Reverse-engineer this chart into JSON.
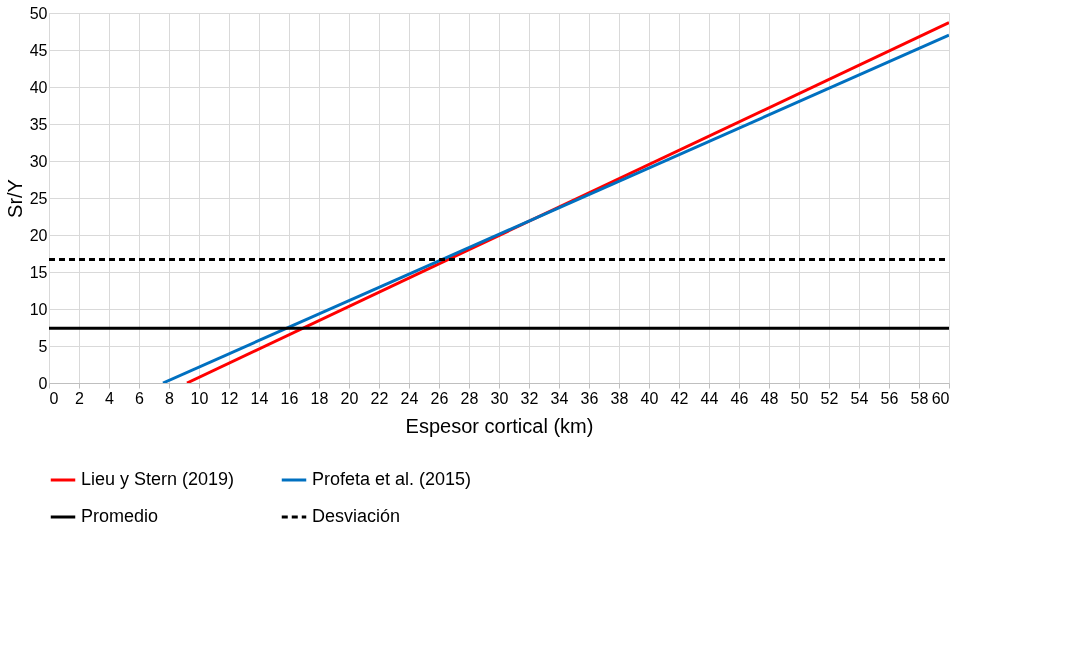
{
  "chart_data": {
    "type": "line",
    "xlabel": "Espesor cortical (km)",
    "ylabel": "Sr/Y",
    "xlim": [
      0,
      60
    ],
    "ylim": [
      0,
      50
    ],
    "xticks": [
      0,
      2,
      4,
      6,
      8,
      10,
      12,
      14,
      16,
      18,
      20,
      22,
      24,
      26,
      28,
      30,
      32,
      34,
      36,
      38,
      40,
      42,
      44,
      46,
      48,
      50,
      52,
      54,
      56,
      58,
      60
    ],
    "yticks": [
      0,
      5,
      10,
      15,
      20,
      25,
      30,
      35,
      40,
      45,
      50
    ],
    "grid": true,
    "legend": "bottom",
    "marker": "none",
    "series": [
      {
        "name": "Lieu y Stern (2019)",
        "color": "#ff0000",
        "x": [
          9.2,
          60
        ],
        "values": [
          0,
          48.7
        ],
        "line_style": "solid"
      },
      {
        "name": "Profeta et al. (2015)",
        "color": "#0070c0",
        "x": [
          7.6,
          60
        ],
        "values": [
          0,
          47
        ],
        "line_style": "solid"
      },
      {
        "name": "Promedio",
        "color": "#000000",
        "x": [
          0,
          60
        ],
        "values": [
          7.4,
          7.4
        ],
        "line_style": "solid"
      },
      {
        "name": "Desviación",
        "color": "#000000",
        "x": [
          0,
          60
        ],
        "values": [
          16.7,
          16.7
        ],
        "line_style": "dashed"
      }
    ]
  }
}
